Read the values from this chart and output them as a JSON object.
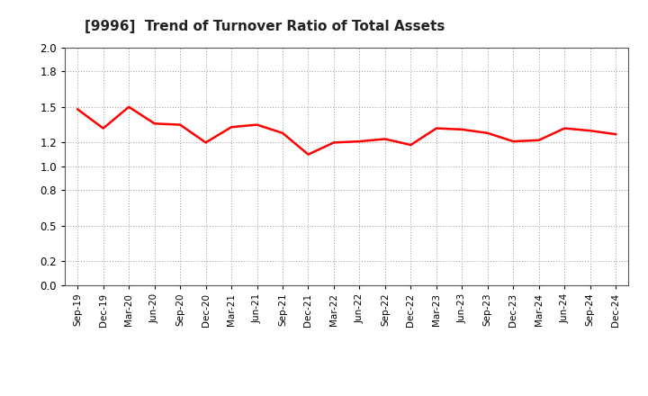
{
  "title": "[9996]  Trend of Turnover Ratio of Total Assets",
  "line_color": "#FF0000",
  "line_width": 1.8,
  "background_color": "#FFFFFF",
  "grid_color": "#999999",
  "ylim": [
    0.0,
    2.0
  ],
  "yticks": [
    0.0,
    0.2,
    0.5,
    0.8,
    1.0,
    1.2,
    1.5,
    1.8,
    2.0
  ],
  "labels": [
    "Sep-19",
    "Dec-19",
    "Mar-20",
    "Jun-20",
    "Sep-20",
    "Dec-20",
    "Mar-21",
    "Jun-21",
    "Sep-21",
    "Dec-21",
    "Mar-22",
    "Jun-22",
    "Sep-22",
    "Dec-22",
    "Mar-23",
    "Jun-23",
    "Sep-23",
    "Dec-23",
    "Mar-24",
    "Jun-24",
    "Sep-24",
    "Dec-24"
  ],
  "values": [
    1.48,
    1.32,
    1.5,
    1.36,
    1.35,
    1.2,
    1.33,
    1.35,
    1.28,
    1.1,
    1.2,
    1.21,
    1.23,
    1.18,
    1.32,
    1.31,
    1.28,
    1.21,
    1.22,
    1.32,
    1.3,
    1.27
  ]
}
